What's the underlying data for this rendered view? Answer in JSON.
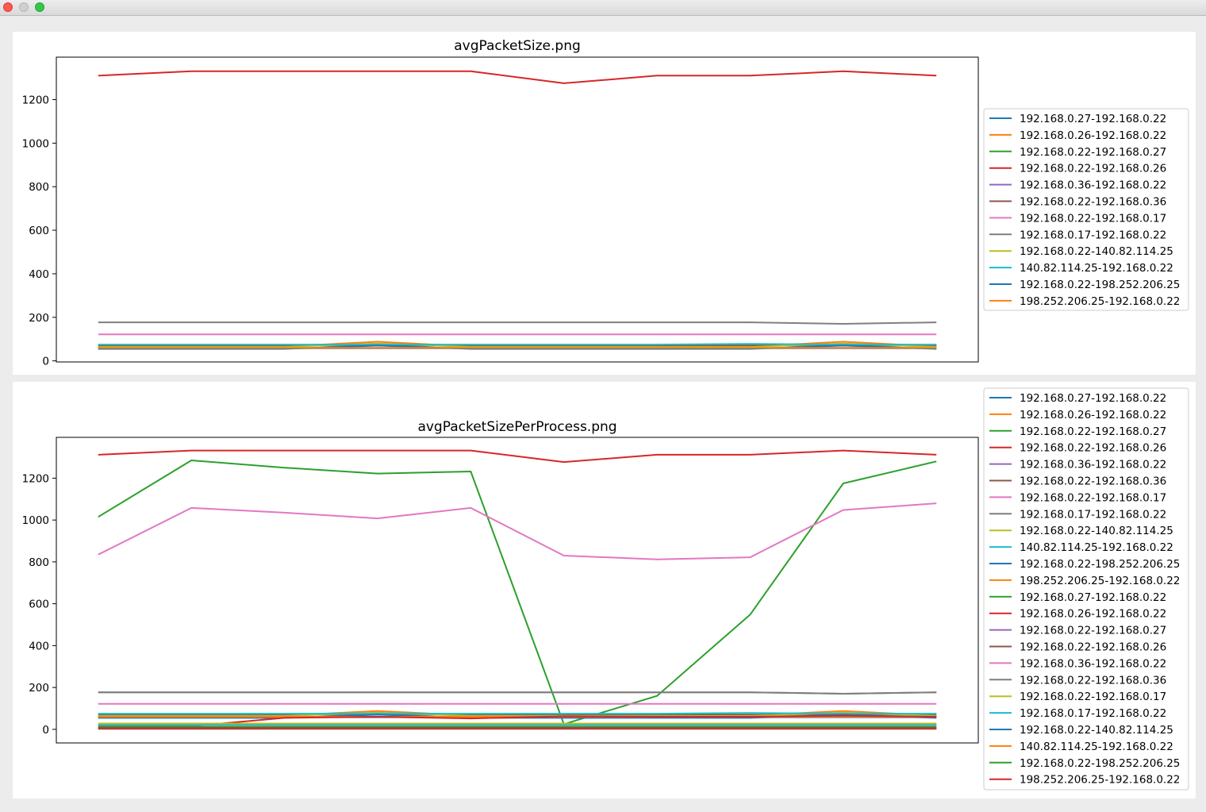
{
  "window": {
    "controls": [
      "close-button",
      "minimize-button",
      "maximize-button"
    ]
  },
  "chart_data": [
    {
      "type": "line",
      "title": "avgPacketSize.png",
      "xlabel": "",
      "ylabel": "",
      "ylim": [
        -5,
        1395
      ],
      "yticks": [
        0,
        200,
        400,
        600,
        800,
        1000,
        1200
      ],
      "x_ticks_visible": false,
      "grid": false,
      "legend_placement": "outside-right",
      "x": [
        0,
        1,
        2,
        3,
        4,
        5,
        6,
        7,
        8,
        9
      ],
      "series": [
        {
          "name": "192.168.0.27-192.168.0.22",
          "color": "#1f77b4",
          "values": [
            58,
            58,
            58,
            58,
            58,
            58,
            58,
            58,
            58,
            58
          ]
        },
        {
          "name": "192.168.0.26-192.168.0.22",
          "color": "#ff7f0e",
          "values": [
            66,
            66,
            66,
            88,
            66,
            66,
            66,
            66,
            88,
            66
          ]
        },
        {
          "name": "192.168.0.22-192.168.0.27",
          "color": "#2ca02c",
          "values": [
            72,
            72,
            72,
            72,
            72,
            72,
            72,
            72,
            72,
            72
          ]
        },
        {
          "name": "192.168.0.22-192.168.0.26",
          "color": "#d62728",
          "values": [
            1310,
            1330,
            1330,
            1330,
            1330,
            1275,
            1310,
            1310,
            1330,
            1310
          ]
        },
        {
          "name": "192.168.0.36-192.168.0.22",
          "color": "#9467bd",
          "values": [
            60,
            60,
            60,
            60,
            60,
            60,
            60,
            60,
            60,
            60
          ]
        },
        {
          "name": "192.168.0.22-192.168.0.36",
          "color": "#8c564b",
          "values": [
            70,
            70,
            70,
            70,
            70,
            70,
            70,
            70,
            70,
            70
          ]
        },
        {
          "name": "192.168.0.22-192.168.0.17",
          "color": "#e377c2",
          "values": [
            122,
            122,
            122,
            122,
            122,
            122,
            122,
            122,
            122,
            122
          ]
        },
        {
          "name": "192.168.0.17-192.168.0.22",
          "color": "#7f7f7f",
          "values": [
            177,
            177,
            177,
            177,
            177,
            177,
            177,
            177,
            170,
            177
          ]
        },
        {
          "name": "192.168.0.22-140.82.114.25",
          "color": "#bcbd22",
          "values": [
            64,
            64,
            64,
            80,
            64,
            64,
            64,
            64,
            80,
            64
          ]
        },
        {
          "name": "140.82.114.25-192.168.0.22",
          "color": "#17becf",
          "values": [
            75,
            75,
            75,
            75,
            75,
            75,
            75,
            78,
            75,
            75
          ]
        },
        {
          "name": "192.168.0.22-198.252.206.25",
          "color": "#1f77b4",
          "values": [
            55,
            55,
            55,
            70,
            55,
            55,
            55,
            55,
            70,
            55
          ]
        },
        {
          "name": "198.252.206.25-192.168.0.22",
          "color": "#ff7f0e",
          "values": [
            60,
            60,
            60,
            60,
            60,
            60,
            60,
            60,
            60,
            60
          ]
        }
      ]
    },
    {
      "type": "line",
      "title": "avgPacketSizePerProcess.png",
      "xlabel": "",
      "ylabel": "",
      "ylim": [
        -65,
        1395
      ],
      "yticks": [
        0,
        200,
        400,
        600,
        800,
        1000,
        1200
      ],
      "x_ticks_visible": false,
      "grid": false,
      "legend_placement": "outside-right",
      "x": [
        0,
        1,
        2,
        3,
        4,
        5,
        6,
        7,
        8,
        9
      ],
      "series": [
        {
          "name": "192.168.0.27-192.168.0.22",
          "color": "#1f77b4",
          "values": [
            58,
            58,
            58,
            58,
            58,
            58,
            58,
            58,
            58,
            58
          ]
        },
        {
          "name": "192.168.0.26-192.168.0.22",
          "color": "#ff7f0e",
          "values": [
            66,
            66,
            66,
            88,
            66,
            66,
            66,
            66,
            88,
            66
          ]
        },
        {
          "name": "192.168.0.22-192.168.0.27",
          "color": "#2ca02c",
          "values": [
            1015,
            1285,
            1250,
            1222,
            1232,
            25,
            160,
            548,
            1175,
            1280
          ]
        },
        {
          "name": "192.168.0.22-192.168.0.26",
          "color": "#d62728",
          "values": [
            1312,
            1332,
            1332,
            1332,
            1332,
            1277,
            1312,
            1312,
            1332,
            1312
          ]
        },
        {
          "name": "192.168.0.36-192.168.0.22",
          "color": "#9467bd",
          "values": [
            60,
            60,
            60,
            60,
            60,
            60,
            60,
            60,
            60,
            60
          ]
        },
        {
          "name": "192.168.0.22-192.168.0.36",
          "color": "#8c564b",
          "values": [
            70,
            70,
            70,
            70,
            70,
            70,
            70,
            70,
            70,
            70
          ]
        },
        {
          "name": "192.168.0.22-192.168.0.17",
          "color": "#e377c2",
          "values": [
            835,
            1058,
            1035,
            1008,
            1058,
            830,
            812,
            822,
            1048,
            1080
          ]
        },
        {
          "name": "192.168.0.17-192.168.0.22",
          "color": "#7f7f7f",
          "values": [
            177,
            177,
            177,
            177,
            177,
            177,
            177,
            177,
            170,
            177
          ]
        },
        {
          "name": "192.168.0.22-140.82.114.25",
          "color": "#bcbd22",
          "values": [
            64,
            64,
            64,
            80,
            64,
            64,
            64,
            64,
            80,
            64
          ]
        },
        {
          "name": "140.82.114.25-192.168.0.22",
          "color": "#17becf",
          "values": [
            75,
            75,
            75,
            75,
            75,
            75,
            75,
            78,
            75,
            75
          ]
        },
        {
          "name": "192.168.0.22-198.252.206.25",
          "color": "#1f77b4",
          "values": [
            55,
            55,
            55,
            70,
            55,
            55,
            55,
            55,
            70,
            55
          ]
        },
        {
          "name": "198.252.206.25-192.168.0.22",
          "color": "#ff7f0e",
          "values": [
            60,
            60,
            60,
            60,
            60,
            60,
            60,
            60,
            60,
            60
          ]
        },
        {
          "name": "192.168.0.27-192.168.0.22",
          "color": "#2ca02c",
          "values": [
            22,
            22,
            22,
            22,
            22,
            22,
            22,
            22,
            25,
            22
          ]
        },
        {
          "name": "192.168.0.26-192.168.0.22",
          "color": "#d62728",
          "values": [
            15,
            15,
            55,
            60,
            52,
            62,
            60,
            60,
            65,
            60
          ]
        },
        {
          "name": "192.168.0.22-192.168.0.27",
          "color": "#9467bd",
          "values": [
            5,
            5,
            5,
            5,
            5,
            5,
            5,
            5,
            5,
            5
          ]
        },
        {
          "name": "192.168.0.22-192.168.0.26",
          "color": "#8c564b",
          "values": [
            2,
            2,
            2,
            2,
            2,
            2,
            2,
            2,
            2,
            2
          ]
        },
        {
          "name": "192.168.0.36-192.168.0.22",
          "color": "#e377c2",
          "values": [
            122,
            122,
            122,
            122,
            122,
            122,
            122,
            122,
            122,
            122
          ]
        },
        {
          "name": "192.168.0.22-192.168.0.36",
          "color": "#7f7f7f",
          "values": [
            177,
            177,
            177,
            177,
            177,
            177,
            177,
            177,
            170,
            177
          ]
        },
        {
          "name": "192.168.0.22-192.168.0.17",
          "color": "#bcbd22",
          "values": [
            28,
            28,
            28,
            28,
            28,
            28,
            28,
            28,
            28,
            28
          ]
        },
        {
          "name": "192.168.0.17-192.168.0.22",
          "color": "#17becf",
          "values": [
            20,
            20,
            20,
            20,
            20,
            20,
            20,
            20,
            20,
            20
          ]
        },
        {
          "name": "192.168.0.22-140.82.114.25",
          "color": "#1f77b4",
          "values": [
            8,
            8,
            8,
            8,
            8,
            8,
            8,
            8,
            8,
            8
          ]
        },
        {
          "name": "140.82.114.25-192.168.0.22",
          "color": "#ff7f0e",
          "values": [
            10,
            10,
            10,
            10,
            10,
            10,
            10,
            10,
            10,
            10
          ]
        },
        {
          "name": "192.168.0.22-198.252.206.25",
          "color": "#2ca02c",
          "values": [
            12,
            12,
            12,
            12,
            12,
            12,
            12,
            12,
            12,
            12
          ]
        },
        {
          "name": "198.252.206.25-192.168.0.22",
          "color": "#d62728",
          "values": [
            6,
            6,
            6,
            6,
            6,
            6,
            6,
            6,
            6,
            6
          ]
        }
      ]
    }
  ]
}
